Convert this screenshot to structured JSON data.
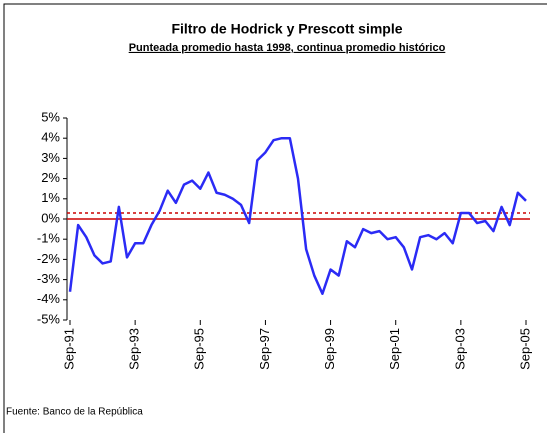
{
  "chart_data": {
    "type": "line",
    "title": "Filtro de Hodrick y Prescott simple",
    "subtitle": "Punteada promedio hasta 1998, continua promedio histórico",
    "source": "Fuente: Banco de la República",
    "categories": [
      "Sep-91",
      null,
      null,
      null,
      null,
      null,
      null,
      null,
      "Sep-93",
      null,
      null,
      null,
      null,
      null,
      null,
      null,
      "Sep-95",
      null,
      null,
      null,
      null,
      null,
      null,
      null,
      "Sep-97",
      null,
      null,
      null,
      null,
      null,
      null,
      null,
      "Sep-99",
      null,
      null,
      null,
      null,
      null,
      null,
      null,
      "Sep-01",
      null,
      null,
      null,
      null,
      null,
      null,
      null,
      "Sep-03",
      null,
      null,
      null,
      null,
      null,
      null,
      null,
      "Sep-05"
    ],
    "series": [
      {
        "color": "#2b2bf5",
        "values": [
          -3.6,
          -0.3,
          -0.9,
          -1.8,
          -2.2,
          -2.1,
          0.6,
          -1.9,
          -1.2,
          -1.2,
          -0.3,
          0.4,
          1.4,
          0.8,
          1.7,
          1.9,
          1.5,
          2.3,
          1.3,
          1.2,
          1.0,
          0.7,
          -0.2,
          2.9,
          3.3,
          3.9,
          4.0,
          4.0,
          2.0,
          -1.5,
          -2.8,
          -3.7,
          -2.5,
          -2.8,
          -1.1,
          -1.4,
          -0.5,
          -0.7,
          -0.6,
          -1.0,
          -0.9,
          -1.4,
          -2.5,
          -0.9,
          -0.8,
          -1.0,
          -0.7,
          -1.2,
          0.3,
          0.3,
          -0.2,
          -0.1,
          -0.6,
          0.6,
          -0.3,
          1.3,
          0.9
        ]
      }
    ],
    "reference_lines": [
      {
        "value": 0.3,
        "style": "dotted",
        "color": "#cc0000"
      },
      {
        "value": 0,
        "style": "solid",
        "color": "#cc0000"
      }
    ],
    "ylim": [
      -5,
      5
    ],
    "yticks": [
      {
        "value": -5,
        "label": "-5%"
      },
      {
        "value": -4,
        "label": "-4%"
      },
      {
        "value": -3,
        "label": "-3%"
      },
      {
        "value": -2,
        "label": "-2%"
      },
      {
        "value": -1,
        "label": "-1%"
      },
      {
        "value": 0,
        "label": "0%"
      },
      {
        "value": 1,
        "label": "1%"
      },
      {
        "value": 2,
        "label": "2%"
      },
      {
        "value": 3,
        "label": "3%"
      },
      {
        "value": 4,
        "label": "4%"
      },
      {
        "value": 5,
        "label": "5%"
      }
    ]
  }
}
